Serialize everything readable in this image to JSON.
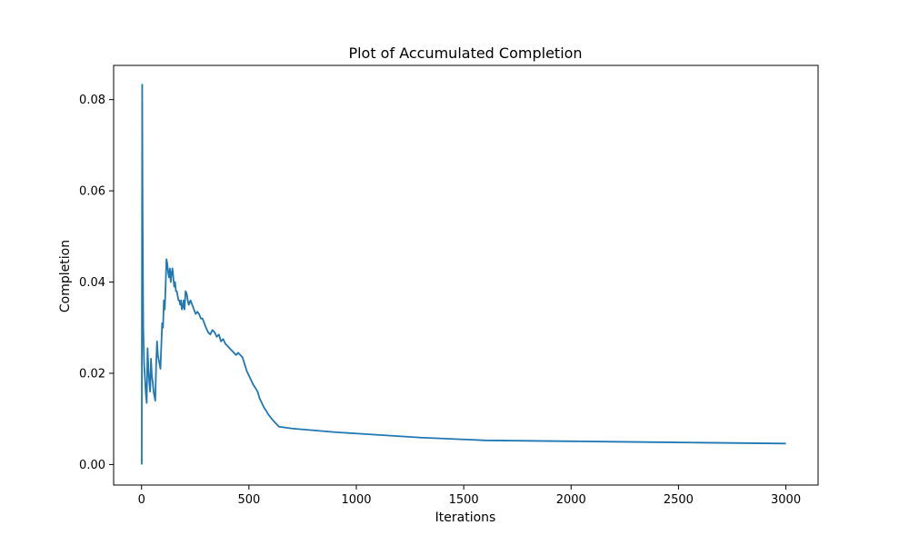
{
  "chart_data": {
    "type": "line",
    "title": "Plot of Accumulated Completion",
    "xlabel": "Iterations",
    "ylabel": "Completion",
    "xlim": [
      -130,
      3150
    ],
    "ylim": [
      -0.0045,
      0.0875
    ],
    "xticks": [
      0,
      500,
      1000,
      1500,
      2000,
      2500,
      3000
    ],
    "yticks": [
      0.0,
      0.02,
      0.04,
      0.06,
      0.08
    ],
    "xtick_labels": [
      "0",
      "500",
      "1000",
      "1500",
      "2000",
      "2500",
      "3000"
    ],
    "ytick_labels": [
      "0.00",
      "0.02",
      "0.04",
      "0.06",
      "0.08"
    ],
    "grid": false,
    "series": [
      {
        "color": "#1f77b4",
        "x": [
          1,
          3,
          5,
          8,
          12,
          16,
          20,
          24,
          28,
          32,
          36,
          40,
          44,
          48,
          52,
          56,
          60,
          64,
          68,
          72,
          76,
          80,
          84,
          88,
          92,
          96,
          100,
          104,
          108,
          112,
          116,
          120,
          124,
          128,
          132,
          136,
          140,
          144,
          148,
          152,
          156,
          160,
          164,
          168,
          172,
          176,
          180,
          184,
          188,
          192,
          196,
          200,
          205,
          210,
          215,
          220,
          228,
          236,
          244,
          252,
          260,
          268,
          276,
          284,
          292,
          300,
          310,
          320,
          330,
          340,
          350,
          360,
          370,
          380,
          390,
          400,
          410,
          420,
          430,
          440,
          450,
          460,
          470,
          480,
          490,
          500,
          510,
          520,
          530,
          540,
          550,
          560,
          570,
          580,
          590,
          600,
          610,
          620,
          630,
          640,
          700,
          800,
          900,
          1000,
          1100,
          1200,
          1300,
          1400,
          1500,
          1600,
          1800,
          2000,
          2200,
          2400,
          2600,
          2800,
          3000
        ],
        "values": [
          0.0,
          0.0833,
          0.055,
          0.03,
          0.022,
          0.019,
          0.0155,
          0.0135,
          0.0255,
          0.021,
          0.018,
          0.016,
          0.0232,
          0.0195,
          0.018,
          0.016,
          0.015,
          0.014,
          0.022,
          0.027,
          0.024,
          0.023,
          0.022,
          0.021,
          0.026,
          0.031,
          0.03,
          0.036,
          0.034,
          0.039,
          0.045,
          0.044,
          0.042,
          0.041,
          0.043,
          0.04,
          0.042,
          0.043,
          0.041,
          0.039,
          0.04,
          0.038,
          0.038,
          0.037,
          0.036,
          0.036,
          0.035,
          0.036,
          0.034,
          0.0345,
          0.036,
          0.034,
          0.038,
          0.0375,
          0.036,
          0.035,
          0.036,
          0.035,
          0.034,
          0.033,
          0.0335,
          0.033,
          0.032,
          0.032,
          0.031,
          0.03,
          0.029,
          0.0285,
          0.0295,
          0.029,
          0.028,
          0.0285,
          0.027,
          0.0275,
          0.0265,
          0.026,
          0.0255,
          0.025,
          0.0245,
          0.024,
          0.0245,
          0.024,
          0.0235,
          0.022,
          0.0205,
          0.0195,
          0.0185,
          0.0175,
          0.0168,
          0.016,
          0.0145,
          0.0135,
          0.0125,
          0.0118,
          0.011,
          0.0104,
          0.0098,
          0.0093,
          0.0088,
          0.0083,
          0.0079,
          0.0075,
          0.0071,
          0.0068,
          0.0065,
          0.0062,
          0.0059,
          0.0057,
          0.0055,
          0.0053,
          0.0052,
          0.0051,
          0.005,
          0.0049,
          0.0048,
          0.0047,
          0.0046
        ]
      }
    ]
  }
}
